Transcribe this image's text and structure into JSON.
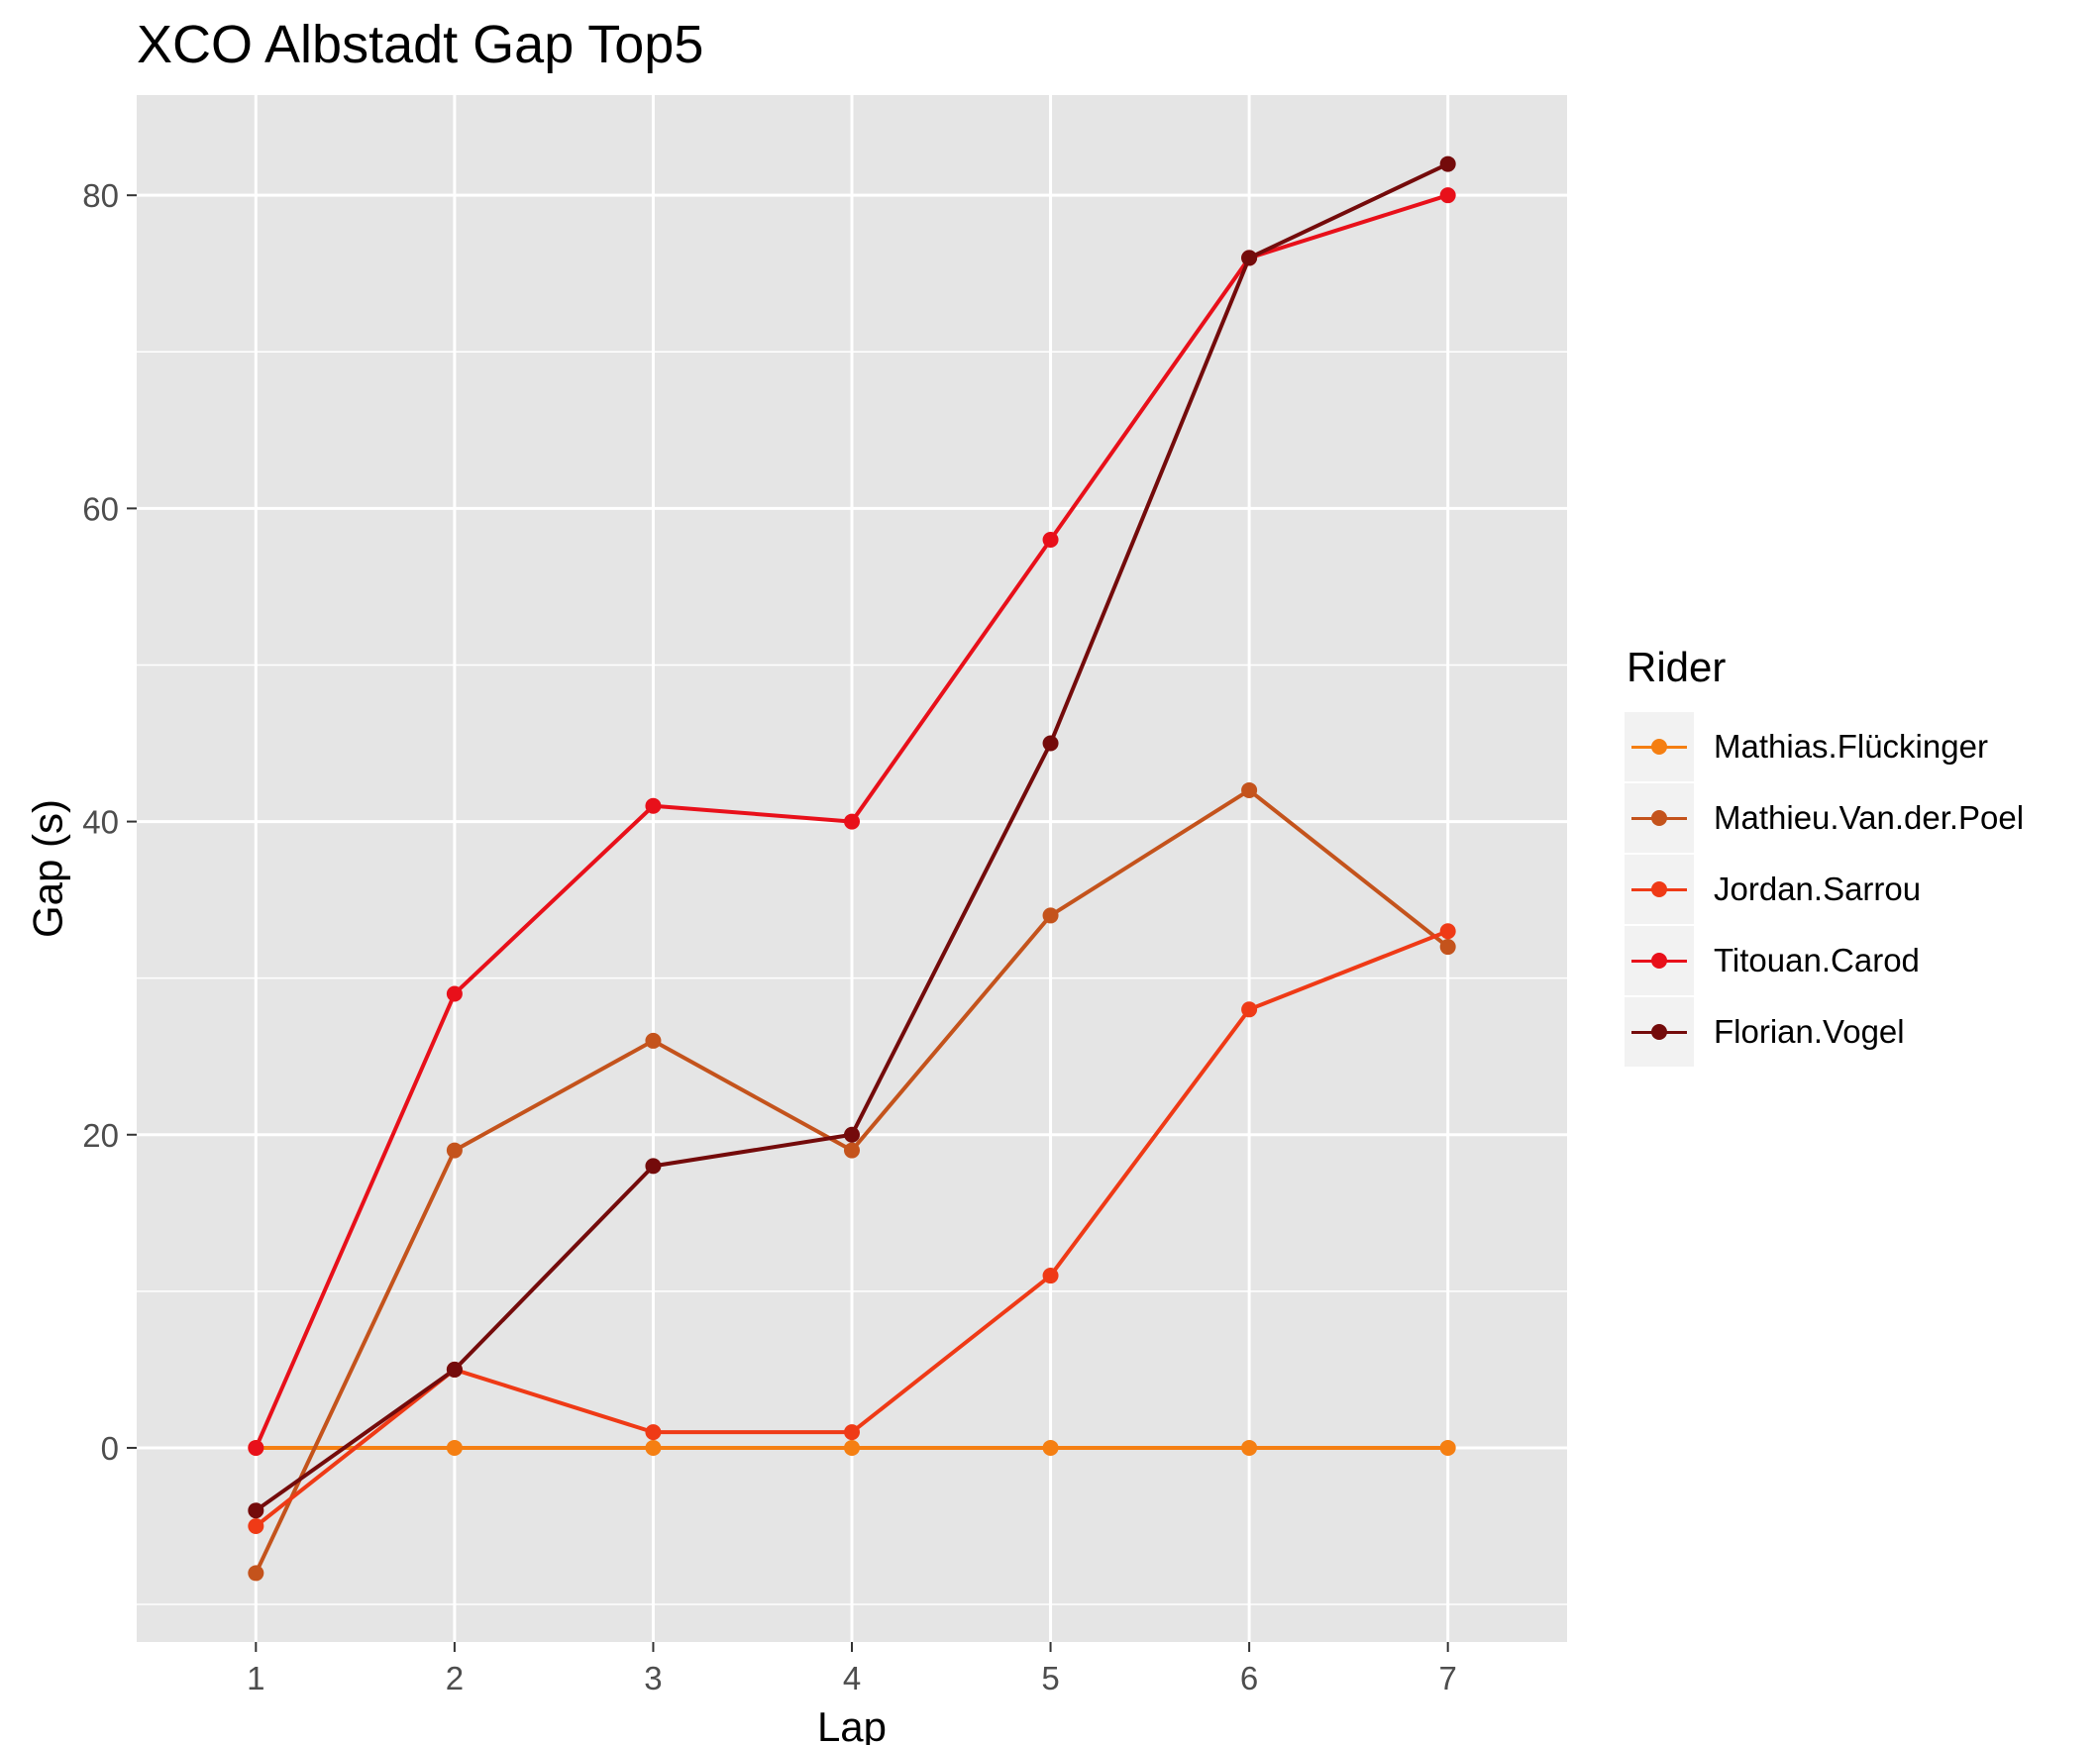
{
  "chart_data": {
    "type": "line",
    "title": "XCO Albstadt Gap Top5",
    "xlabel": "Lap",
    "ylabel": "Gap (s)",
    "x": [
      1,
      2,
      3,
      4,
      5,
      6,
      7
    ],
    "xlim": [
      0.4,
      7.6
    ],
    "ylim": [
      -12.4,
      86.4
    ],
    "yticks": [
      0,
      20,
      40,
      60,
      80
    ],
    "grid": true,
    "legend_title": "Rider",
    "legend_position": "right",
    "background": "#e5e5e5",
    "series": [
      {
        "name": "Mathias.Flückinger",
        "color": "#f57f12",
        "values": [
          0,
          0,
          0,
          0,
          0,
          0,
          0
        ]
      },
      {
        "name": "Mathieu.Van.der.Poel",
        "color": "#c4531c",
        "values": [
          -8,
          19,
          26,
          19,
          34,
          42,
          32
        ]
      },
      {
        "name": "Jordan.Sarrou",
        "color": "#ef3a16",
        "values": [
          -5,
          5,
          1,
          1,
          11,
          28,
          33
        ]
      },
      {
        "name": "Titouan.Carod",
        "color": "#e8101a",
        "values": [
          0,
          29,
          41,
          40,
          58,
          76,
          80
        ]
      },
      {
        "name": "Florian.Vogel",
        "color": "#740b0b",
        "values": [
          -4,
          5,
          18,
          20,
          45,
          76,
          82
        ]
      }
    ]
  }
}
